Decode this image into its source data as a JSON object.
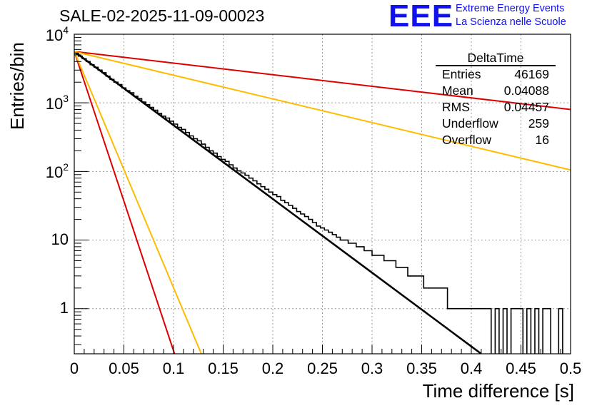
{
  "chart_data": {
    "type": "histogram",
    "title": "SALE-02-2025-11-09-00023",
    "xlabel": "Time difference [s]",
    "ylabel": "Entries/bin",
    "xlim": [
      0,
      0.5
    ],
    "ylim": [
      0.22,
      10000
    ],
    "yscale": "log",
    "grid": true,
    "bin_width": 0.004,
    "x_ticks": [
      "0",
      "0.05",
      "0.1",
      "0.15",
      "0.2",
      "0.25",
      "0.3",
      "0.35",
      "0.4",
      "0.45",
      "0.5"
    ],
    "y_ticks": [
      {
        "base": "10",
        "exp": "4",
        "value": 10000
      },
      {
        "base": "10",
        "exp": "3",
        "value": 1000
      },
      {
        "base": "10",
        "exp": "2",
        "value": 100
      },
      {
        "base": "10",
        "exp": "",
        "value": 10
      },
      {
        "base": "1",
        "exp": "",
        "value": 1
      }
    ],
    "histogram": {
      "name": "DeltaTime",
      "values": [
        5300,
        4800,
        4400,
        4000,
        3600,
        3300,
        3000,
        2750,
        2450,
        2200,
        2000,
        1850,
        1650,
        1500,
        1400,
        1250,
        1150,
        1030,
        940,
        860,
        780,
        700,
        640,
        600,
        540,
        490,
        440,
        410,
        370,
        330,
        300,
        280,
        250,
        225,
        200,
        185,
        165,
        150,
        140,
        125,
        112,
        102,
        95,
        88,
        80,
        73,
        66,
        60,
        55,
        50,
        46,
        43,
        38,
        35,
        32,
        29,
        26,
        24,
        22,
        20,
        18,
        16,
        15,
        14,
        13,
        12,
        11,
        10,
        10,
        9,
        9,
        8,
        8,
        7,
        7,
        6,
        6,
        6,
        5,
        5,
        5,
        4,
        4,
        4,
        3,
        3,
        3,
        3,
        2,
        2,
        2,
        2,
        2,
        2,
        1,
        1,
        1,
        1,
        1,
        1,
        1,
        1,
        1,
        1,
        1,
        0,
        1,
        0,
        1,
        0,
        1,
        1,
        1,
        0,
        1,
        0,
        1,
        0,
        1,
        1,
        0,
        0,
        1,
        0,
        0
      ]
    },
    "series": [
      {
        "name": "fit-black",
        "color": "#000000",
        "x": [
          0,
          0.41
        ],
        "y": [
          5600,
          0.22
        ]
      },
      {
        "name": "fit-red-steep",
        "color": "#dd0000",
        "x": [
          0,
          0.101
        ],
        "y": [
          5600,
          0.22
        ]
      },
      {
        "name": "fit-yellow-steep",
        "color": "#ffbb00",
        "x": [
          0,
          0.128
        ],
        "y": [
          5600,
          0.22
        ]
      },
      {
        "name": "fit-red-shallow",
        "color": "#dd0000",
        "x": [
          0,
          0.5
        ],
        "y": [
          5600,
          800
        ]
      },
      {
        "name": "fit-yellow-shallow",
        "color": "#ffbb00",
        "x": [
          0,
          0.5
        ],
        "y": [
          5600,
          105
        ]
      }
    ]
  },
  "logo": {
    "letters": "EEE",
    "line1": "Extreme Energy Events",
    "line2": "La Scienza nelle Scuole"
  },
  "stats": {
    "name": "DeltaTime",
    "rows": [
      {
        "label": "Entries",
        "value": "46169"
      },
      {
        "label": "Mean",
        "value": "0.04088"
      },
      {
        "label": "RMS",
        "value": "0.04457"
      },
      {
        "label": "Underflow",
        "value": "259"
      },
      {
        "label": "Overflow",
        "value": "16"
      }
    ]
  }
}
